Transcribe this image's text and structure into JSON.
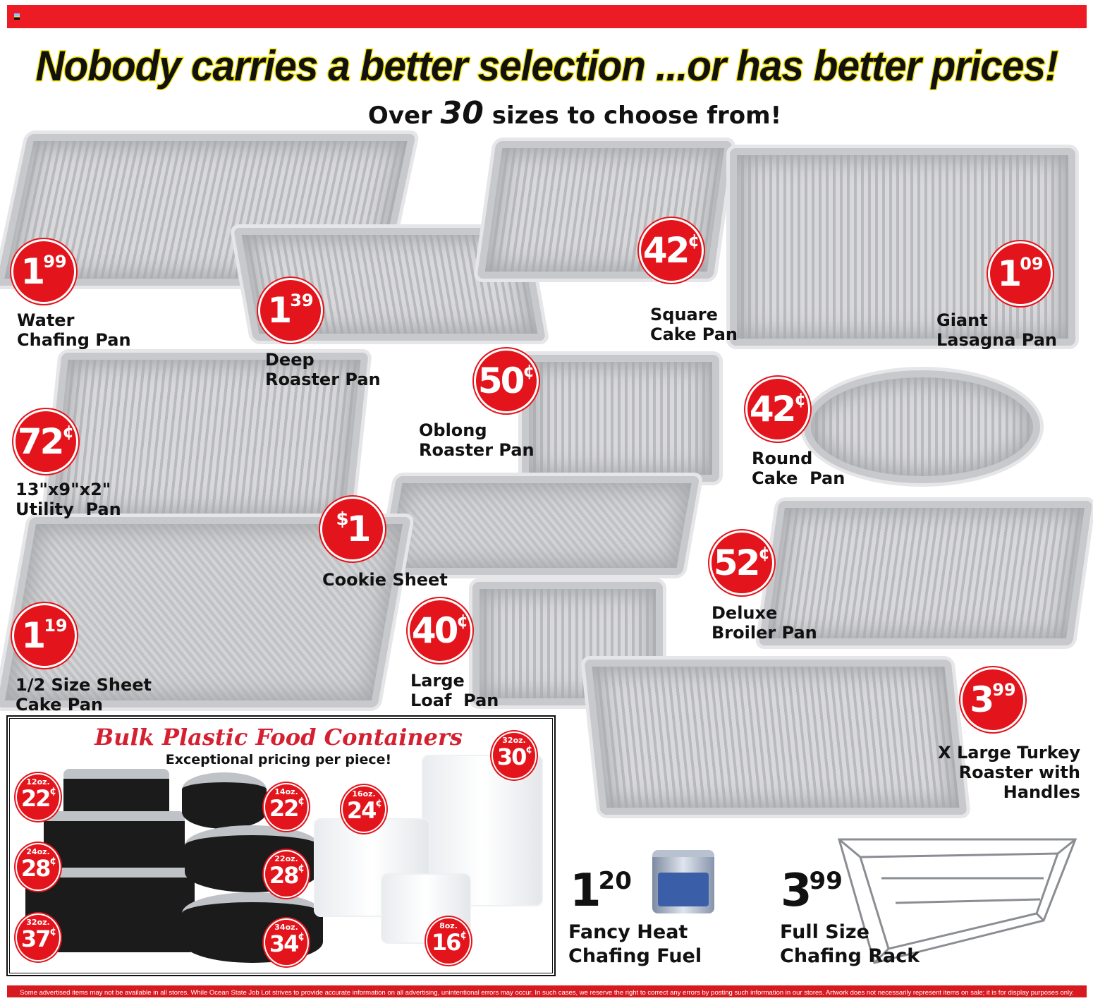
{
  "header": {
    "headline": "Nobody carries a better selection ...or has better prices!",
    "sub_pre": "Over",
    "sub_num": "30",
    "sub_post": "sizes to choose from!"
  },
  "products": [
    {
      "name": [
        "Water",
        "Chafing Pan"
      ],
      "price": {
        "pre": "",
        "main": "1",
        "sup": "99"
      }
    },
    {
      "name": [
        "Deep",
        "Roaster Pan"
      ],
      "price": {
        "pre": "",
        "main": "1",
        "sup": "39"
      }
    },
    {
      "name": [
        "Square",
        "Cake Pan"
      ],
      "price": {
        "pre": "",
        "main": "42",
        "sup": "¢"
      }
    },
    {
      "name": [
        "Giant",
        "Lasagna Pan"
      ],
      "price": {
        "pre": "",
        "main": "1",
        "sup": "09"
      }
    },
    {
      "name": [
        "Oblong",
        "Roaster Pan"
      ],
      "price": {
        "pre": "",
        "main": "50",
        "sup": "¢"
      }
    },
    {
      "name": [
        "Round",
        "Cake  Pan"
      ],
      "price": {
        "pre": "",
        "main": "42",
        "sup": "¢"
      }
    },
    {
      "name": [
        "13\"x9\"x2\"",
        "Utility  Pan"
      ],
      "price": {
        "pre": "",
        "main": "72",
        "sup": "¢"
      }
    },
    {
      "name": [
        "Cookie Sheet"
      ],
      "price": {
        "pre": "$",
        "main": "1",
        "sup": ""
      }
    },
    {
      "name": [
        "Deluxe",
        "Broiler Pan"
      ],
      "price": {
        "pre": "",
        "main": "52",
        "sup": "¢"
      }
    },
    {
      "name": [
        "1/2 Size Sheet",
        "Cake Pan"
      ],
      "price": {
        "pre": "",
        "main": "1",
        "sup": "19"
      }
    },
    {
      "name": [
        "Large",
        "Loaf  Pan"
      ],
      "price": {
        "pre": "",
        "main": "40",
        "sup": "¢"
      }
    },
    {
      "name": [
        "X Large Turkey",
        "Roaster with",
        "Handles"
      ],
      "price": {
        "pre": "",
        "main": "3",
        "sup": "99"
      }
    },
    {
      "name": [
        "Fancy Heat",
        "Chafing Fuel"
      ],
      "price": {
        "pre": "",
        "main": "1",
        "sup": "20"
      }
    },
    {
      "name": [
        "Full Size",
        "Chafing Rack"
      ],
      "price": {
        "pre": "",
        "main": "3",
        "sup": "99"
      }
    }
  ],
  "containers": {
    "title": "Bulk Plastic Food Containers",
    "subtitle": "Exceptional pricing per piece!",
    "items": [
      {
        "size": "12oz.",
        "price": "22",
        "unit": "¢"
      },
      {
        "size": "24oz.",
        "price": "28",
        "unit": "¢"
      },
      {
        "size": "32oz.",
        "price": "37",
        "unit": "¢"
      },
      {
        "size": "14oz.",
        "price": "22",
        "unit": "¢"
      },
      {
        "size": "22oz.",
        "price": "28",
        "unit": "¢"
      },
      {
        "size": "34oz.",
        "price": "34",
        "unit": "¢"
      },
      {
        "size": "16oz.",
        "price": "24",
        "unit": "¢"
      },
      {
        "size": "32oz.",
        "price": "30",
        "unit": "¢"
      },
      {
        "size": "8oz.",
        "price": "16",
        "unit": "¢"
      }
    ]
  },
  "footer": "Some advertised items may not be available in all stores. While Ocean State Job Lot strives to provide accurate information on all advertising, unintentional errors may occur. In such cases, we reserve the right to correct any errors by posting such information in our stores. Artwork does not necessarily represent items on sale; it is for display purposes only.",
  "colors": {
    "brand_red": "#ed1c24",
    "badge_red": "#e3141b",
    "headline_outline": "#f5e600",
    "script_red": "#d42030"
  }
}
